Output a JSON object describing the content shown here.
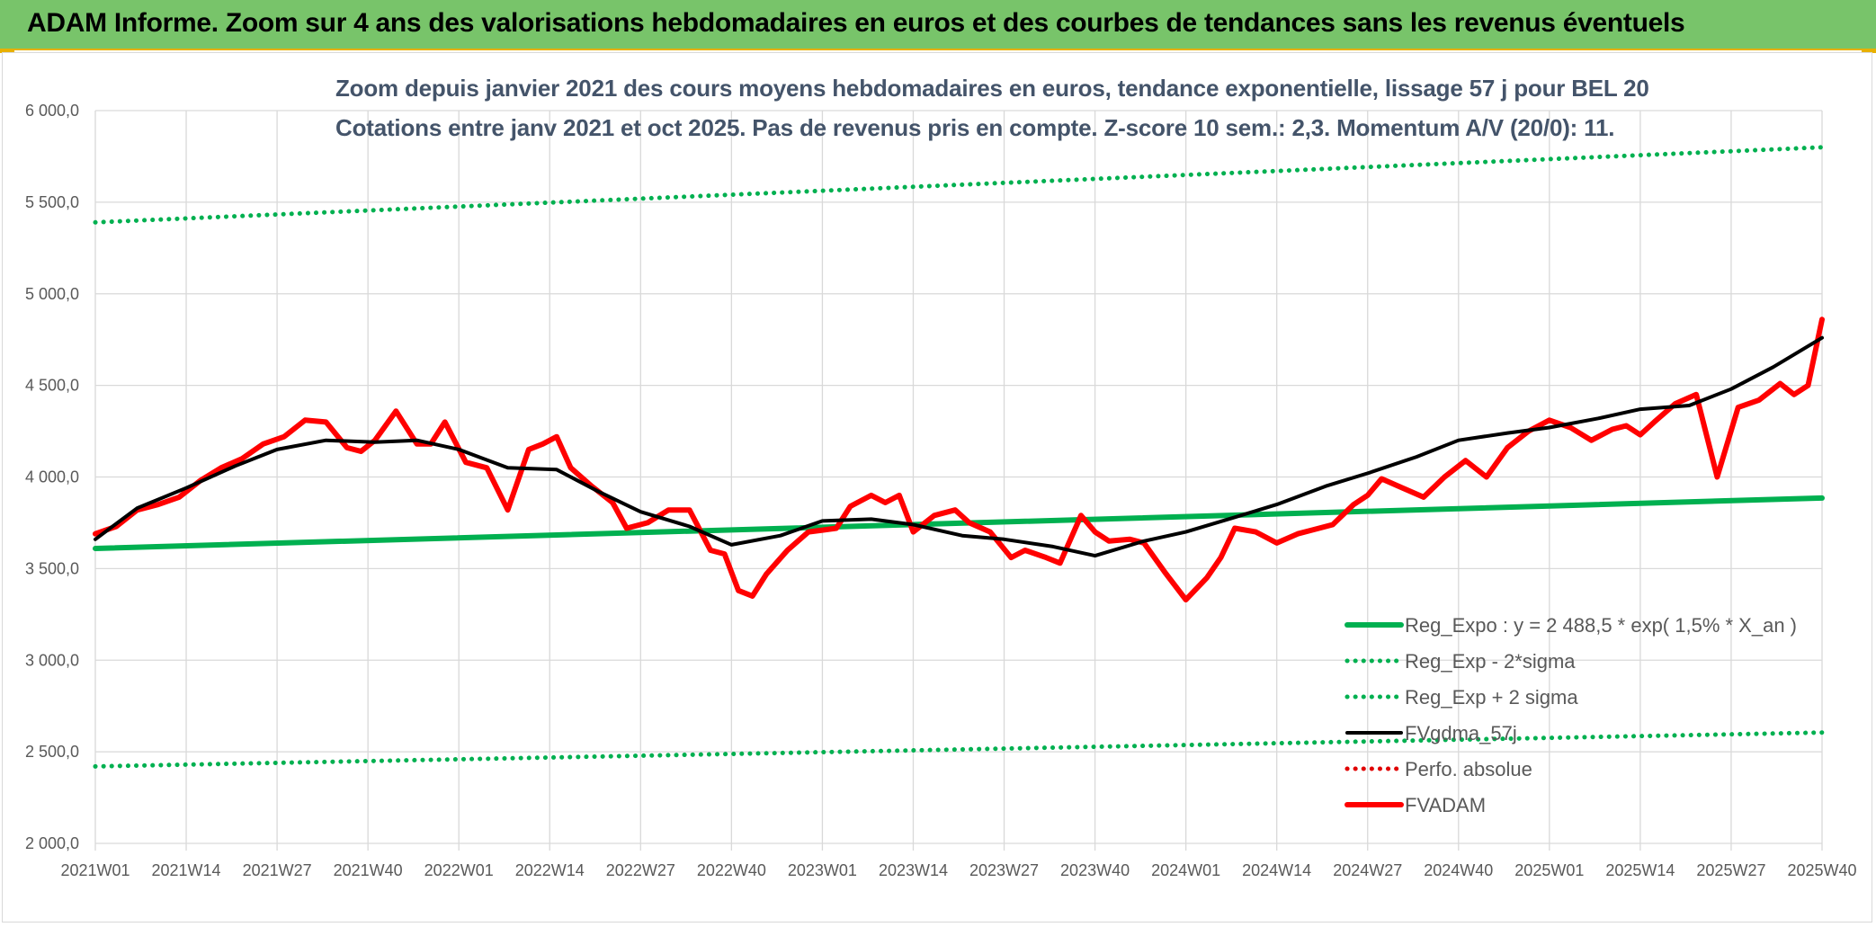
{
  "header": {
    "title": "ADAM Informe. Zoom sur 4 ans des valorisations hebdomadaires en euros et des courbes de tendances sans les revenus éventuels"
  },
  "colors": {
    "header_bg": "#78c46a",
    "reg_green": "#00b050",
    "fvadam_red": "#ff0000",
    "fvgdma_black": "#000000",
    "perfo_red": "#e00000"
  },
  "chart_data": {
    "type": "line",
    "title": "Zoom depuis janvier 2021 des cours moyens hebdomadaires en euros, tendance exponentielle, lissage 57 j pour BEL 20",
    "subtitle": "Cotations entre janv 2021 et oct 2025. Pas de revenus pris en compte. Z-score 10 sem.: 2,3. Momentum A/V (20/0): 11.",
    "ylim": [
      2000,
      6000
    ],
    "y_ticks": [
      2000,
      2500,
      3000,
      3500,
      4000,
      4500,
      5000,
      5500,
      6000
    ],
    "y_tick_labels": [
      "2 000,0",
      "2 500,0",
      "3 000,0",
      "3 500,0",
      "4 000,0",
      "4 500,0",
      "5 000,0",
      "5 500,0",
      "6 000,0"
    ],
    "x_tick_labels": [
      "2021W01",
      "2021W14",
      "2021W27",
      "2021W40",
      "2022W01",
      "2022W14",
      "2022W27",
      "2022W40",
      "2023W01",
      "2023W14",
      "2023W27",
      "2023W40",
      "2024W01",
      "2024W14",
      "2024W27",
      "2024W40",
      "2025W01",
      "2025W14",
      "2025W27",
      "2025W40"
    ],
    "x_range_weeks": [
      0,
      247
    ],
    "legend_position": "bottom-right",
    "series": [
      {
        "name": "Reg_Expo : y = 2 488,5 * exp( 1,5% *  X_an )",
        "style": "solid-thick",
        "color": "#00b050",
        "x": [
          0,
          247
        ],
        "values": [
          3610,
          3885
        ]
      },
      {
        "name": "Reg_Exp - 2*sigma",
        "style": "dotted",
        "color": "#00b050",
        "x": [
          0,
          247
        ],
        "values": [
          2420,
          2605
        ]
      },
      {
        "name": "Reg_Exp + 2 sigma",
        "style": "dotted",
        "color": "#00b050",
        "x": [
          0,
          247
        ],
        "values": [
          5390,
          5800
        ]
      },
      {
        "name": "FVgdma_57j",
        "style": "solid",
        "color": "#000000",
        "x": [
          0,
          6,
          13,
          20,
          26,
          33,
          40,
          46,
          52,
          59,
          66,
          72,
          78,
          85,
          91,
          98,
          104,
          111,
          117,
          124,
          130,
          137,
          143,
          150,
          156,
          163,
          169,
          176,
          182,
          189,
          195,
          202,
          208,
          215,
          221,
          228,
          234,
          240,
          247
        ],
        "values": [
          3660,
          3830,
          3940,
          4060,
          4150,
          4200,
          4190,
          4200,
          4150,
          4050,
          4040,
          3920,
          3810,
          3730,
          3630,
          3680,
          3760,
          3770,
          3740,
          3680,
          3660,
          3620,
          3570,
          3650,
          3700,
          3780,
          3850,
          3950,
          4020,
          4110,
          4200,
          4240,
          4270,
          4320,
          4370,
          4390,
          4480,
          4600,
          4760
        ]
      },
      {
        "name": "Perfo. absolue",
        "style": "dotted",
        "color": "#e00000",
        "x": [],
        "values": []
      },
      {
        "name": "FVADAM",
        "style": "solid-thick",
        "color": "#ff0000",
        "x": [
          0,
          3,
          6,
          9,
          12,
          15,
          18,
          21,
          24,
          27,
          30,
          33,
          36,
          38,
          40,
          43,
          46,
          48,
          50,
          53,
          56,
          59,
          62,
          64,
          66,
          68,
          71,
          74,
          76,
          79,
          82,
          85,
          88,
          90,
          92,
          94,
          96,
          99,
          102,
          104,
          106,
          108,
          111,
          113,
          115,
          117,
          120,
          123,
          125,
          128,
          131,
          133,
          136,
          138,
          141,
          143,
          145,
          148,
          150,
          153,
          156,
          159,
          161,
          163,
          166,
          169,
          172,
          174,
          177,
          180,
          182,
          184,
          187,
          190,
          193,
          196,
          199,
          202,
          205,
          208,
          211,
          214,
          217,
          219,
          221,
          223,
          226,
          229,
          232,
          235,
          238,
          241,
          243,
          245,
          247
        ],
        "values": [
          3690,
          3730,
          3820,
          3850,
          3890,
          3980,
          4050,
          4100,
          4180,
          4220,
          4310,
          4300,
          4160,
          4140,
          4200,
          4360,
          4180,
          4180,
          4300,
          4080,
          4050,
          3820,
          4150,
          4180,
          4220,
          4050,
          3950,
          3860,
          3720,
          3750,
          3820,
          3820,
          3600,
          3580,
          3380,
          3350,
          3470,
          3600,
          3700,
          3710,
          3720,
          3840,
          3900,
          3860,
          3900,
          3700,
          3790,
          3820,
          3750,
          3700,
          3560,
          3600,
          3560,
          3530,
          3790,
          3700,
          3650,
          3660,
          3640,
          3480,
          3330,
          3450,
          3560,
          3720,
          3700,
          3640,
          3690,
          3710,
          3740,
          3850,
          3900,
          3990,
          3940,
          3890,
          4000,
          4090,
          4000,
          4160,
          4250,
          4310,
          4270,
          4200,
          4260,
          4280,
          4230,
          4300,
          4400,
          4450,
          4000,
          4380,
          4420,
          4510,
          4450,
          4500,
          4860
        ]
      }
    ]
  }
}
